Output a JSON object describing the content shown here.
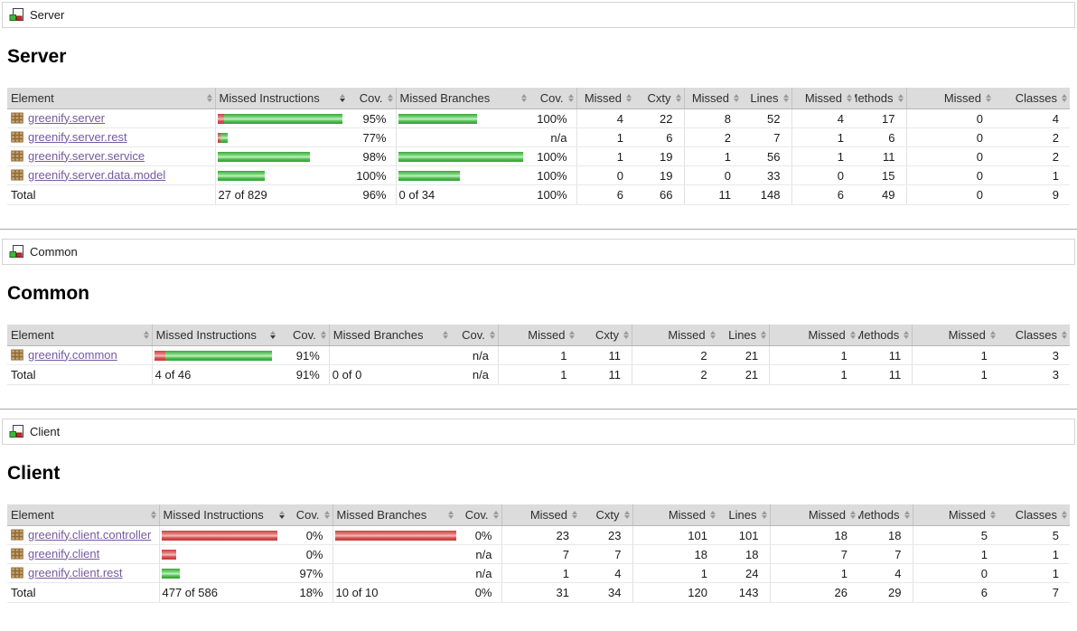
{
  "report": {
    "sorted_column": {
      "label": "Missed Instructions",
      "direction": "desc"
    },
    "icon_names": {
      "breadcrumb_icon": "coverage-group-icon",
      "element_icon": "package-icon",
      "header_sort_icon": "sort-arrows-icon"
    },
    "colors": {
      "bar_green": "#3db83d",
      "bar_red": "#cc4444",
      "header_bg": "#dcdcdc",
      "link": "#75599f"
    }
  },
  "table_headers": [
    "Element",
    "Missed Instructions",
    "Cov.",
    "Missed Branches",
    "Cov.",
    "Missed",
    "Cxty",
    "Missed",
    "Lines",
    "Missed",
    "Methods",
    "Missed",
    "Classes"
  ],
  "sections": [
    {
      "id": "server",
      "breadcrumb": {
        "label": "Server"
      },
      "title": "Server",
      "table": {
        "rows": [
          {
            "element": "greenify.server",
            "instr": {
              "red": 7,
              "green": 131,
              "cov": "95%"
            },
            "branch": {
              "red": 0,
              "green": 87,
              "cov": "100%"
            },
            "nums": [
              "4",
              "22",
              "8",
              "52",
              "4",
              "17",
              "0",
              "4"
            ]
          },
          {
            "element": "greenify.server.rest",
            "instr": {
              "red": 3,
              "green": 8,
              "cov": "77%"
            },
            "branch": {
              "red": 0,
              "green": 0,
              "cov": "n/a"
            },
            "nums": [
              "1",
              "6",
              "2",
              "7",
              "1",
              "6",
              "0",
              "2"
            ]
          },
          {
            "element": "greenify.server.service",
            "instr": {
              "red": 0,
              "green": 102,
              "cov": "98%"
            },
            "branch": {
              "red": 0,
              "green": 138,
              "cov": "100%"
            },
            "nums": [
              "1",
              "19",
              "1",
              "56",
              "1",
              "11",
              "0",
              "2"
            ]
          },
          {
            "element": "greenify.server.data.model",
            "instr": {
              "red": 0,
              "green": 52,
              "cov": "100%"
            },
            "branch": {
              "red": 0,
              "green": 68,
              "cov": "100%"
            },
            "nums": [
              "0",
              "19",
              "0",
              "33",
              "0",
              "15",
              "0",
              "1"
            ]
          }
        ],
        "total": {
          "label": "Total",
          "instr": "27 of 829",
          "instr_cov": "96%",
          "branch": "0 of 34",
          "branch_cov": "100%",
          "nums": [
            "6",
            "66",
            "11",
            "148",
            "6",
            "49",
            "0",
            "9"
          ]
        }
      }
    },
    {
      "id": "common",
      "breadcrumb": {
        "label": "Common"
      },
      "title": "Common",
      "table": {
        "rows": [
          {
            "element": "greenify.common",
            "instr": {
              "red": 12,
              "green": 118,
              "cov": "91%"
            },
            "branch": {
              "red": 0,
              "green": 0,
              "cov": "n/a"
            },
            "nums": [
              "1",
              "11",
              "2",
              "21",
              "1",
              "11",
              "1",
              "3"
            ]
          }
        ],
        "total": {
          "label": "Total",
          "instr": "4 of 46",
          "instr_cov": "91%",
          "branch": "0 of 0",
          "branch_cov": "n/a",
          "nums": [
            "1",
            "11",
            "2",
            "21",
            "1",
            "11",
            "1",
            "3"
          ]
        }
      }
    },
    {
      "id": "client",
      "breadcrumb": {
        "label": "Client"
      },
      "title": "Client",
      "table": {
        "rows": [
          {
            "element": "greenify.client.controller",
            "instr": {
              "red": 128,
              "green": 0,
              "cov": "0%"
            },
            "branch": {
              "red": 135,
              "green": 0,
              "cov": "0%"
            },
            "nums": [
              "23",
              "23",
              "101",
              "101",
              "18",
              "18",
              "5",
              "5"
            ]
          },
          {
            "element": "greenify.client",
            "instr": {
              "red": 16,
              "green": 0,
              "cov": "0%"
            },
            "branch": {
              "red": 0,
              "green": 0,
              "cov": "n/a"
            },
            "nums": [
              "7",
              "7",
              "18",
              "18",
              "7",
              "7",
              "1",
              "1"
            ]
          },
          {
            "element": "greenify.client.rest",
            "instr": {
              "red": 0,
              "green": 20,
              "cov": "97%"
            },
            "branch": {
              "red": 0,
              "green": 0,
              "cov": "n/a"
            },
            "nums": [
              "1",
              "4",
              "1",
              "24",
              "1",
              "4",
              "0",
              "1"
            ]
          }
        ],
        "total": {
          "label": "Total",
          "instr": "477 of 586",
          "instr_cov": "18%",
          "branch": "10 of 10",
          "branch_cov": "0%",
          "nums": [
            "31",
            "34",
            "120",
            "143",
            "26",
            "29",
            "6",
            "7"
          ]
        }
      }
    }
  ]
}
